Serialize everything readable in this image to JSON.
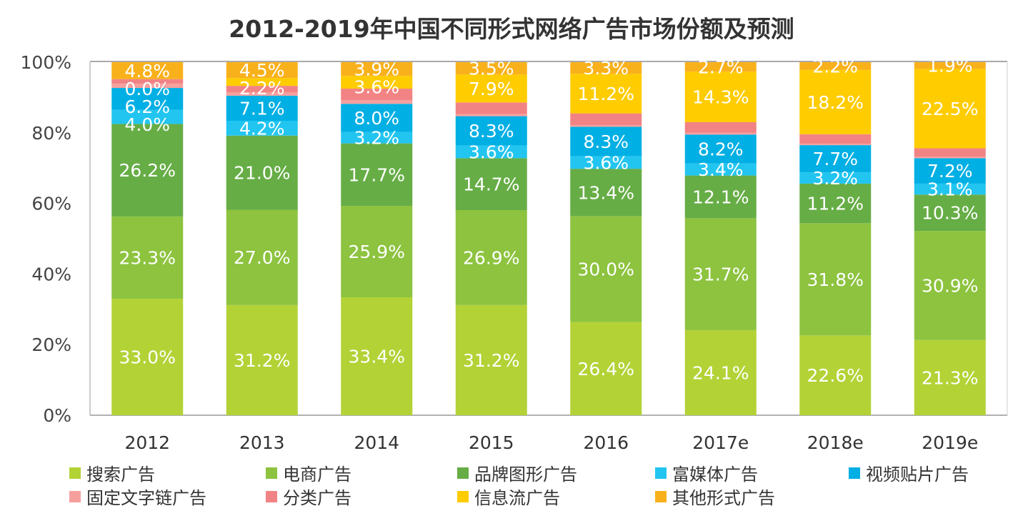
{
  "chart_data": {
    "type": "stacked-bar",
    "title": "2012-2019年中国不同形式网络广告市场份额及预测",
    "categories": [
      "2012",
      "2013",
      "2014",
      "2015",
      "2016",
      "2017e",
      "2018e",
      "2019e"
    ],
    "ylim": [
      0,
      100
    ],
    "yticks": [
      "0%",
      "20%",
      "40%",
      "60%",
      "80%",
      "100%"
    ],
    "legend_position": "bottom",
    "series": [
      {
        "name": "搜索广告",
        "color": "#b3d236",
        "values": [
          33.0,
          31.2,
          33.4,
          31.2,
          26.4,
          24.1,
          22.6,
          21.3
        ],
        "labels": [
          "33.0%",
          "31.2%",
          "33.4%",
          "31.2%",
          "26.4%",
          "24.1%",
          "22.6%",
          "21.3%"
        ]
      },
      {
        "name": "电商广告",
        "color": "#8dc33f",
        "values": [
          23.3,
          27.0,
          25.9,
          26.9,
          30.0,
          31.7,
          31.8,
          30.9
        ],
        "labels": [
          "23.3%",
          "27.0%",
          "25.9%",
          "26.9%",
          "30.0%",
          "31.7%",
          "31.8%",
          "30.9%"
        ]
      },
      {
        "name": "品牌图形广告",
        "color": "#66ad46",
        "values": [
          26.2,
          21.0,
          17.7,
          14.7,
          13.4,
          12.1,
          11.2,
          10.3
        ],
        "labels": [
          "26.2%",
          "21.0%",
          "17.7%",
          "14.7%",
          "13.4%",
          "12.1%",
          "11.2%",
          "10.3%"
        ]
      },
      {
        "name": "富媒体广告",
        "color": "#22c5f0",
        "values": [
          4.0,
          4.2,
          3.2,
          3.6,
          3.6,
          3.4,
          3.2,
          3.1
        ],
        "labels": [
          "4.0%",
          "4.2%",
          "3.2%",
          "3.6%",
          "3.6%",
          "3.4%",
          "3.2%",
          "3.1%"
        ]
      },
      {
        "name": "视频贴片广告",
        "color": "#00afe4",
        "values": [
          6.2,
          7.1,
          8.0,
          8.3,
          8.3,
          8.2,
          7.7,
          7.2
        ],
        "labels": [
          "6.2%",
          "7.1%",
          "8.0%",
          "8.3%",
          "8.3%",
          "8.2%",
          "7.7%",
          "7.2%"
        ]
      },
      {
        "name": "固定文字链广告",
        "color": "#f6a09e",
        "values": [
          1.2,
          1.0,
          1.0,
          0.6,
          0.5,
          0.5,
          0.4,
          0.4
        ],
        "labels": [
          null,
          null,
          null,
          null,
          null,
          null,
          null,
          null
        ]
      },
      {
        "name": "分类广告",
        "color": "#f28385",
        "values": [
          1.3,
          1.8,
          3.3,
          3.3,
          3.3,
          3.0,
          2.7,
          2.4
        ],
        "labels": [
          null,
          null,
          null,
          null,
          null,
          null,
          null,
          null
        ]
      },
      {
        "name": "信息流广告",
        "color": "#ffcc00",
        "values": [
          0.0,
          2.2,
          3.6,
          7.9,
          11.2,
          14.3,
          18.2,
          22.5
        ],
        "labels": [
          "0.0%",
          "2.2%",
          "3.6%",
          "7.9%",
          "11.2%",
          "14.3%",
          "18.2%",
          "22.5%"
        ]
      },
      {
        "name": "其他形式广告",
        "color": "#f9b11b",
        "values": [
          4.8,
          4.5,
          3.9,
          3.5,
          3.3,
          2.7,
          2.2,
          1.9
        ],
        "labels": [
          "4.8%",
          "4.5%",
          "3.9%",
          "3.5%",
          "3.3%",
          "2.7%",
          "2.2%",
          "1.9%"
        ]
      }
    ]
  }
}
